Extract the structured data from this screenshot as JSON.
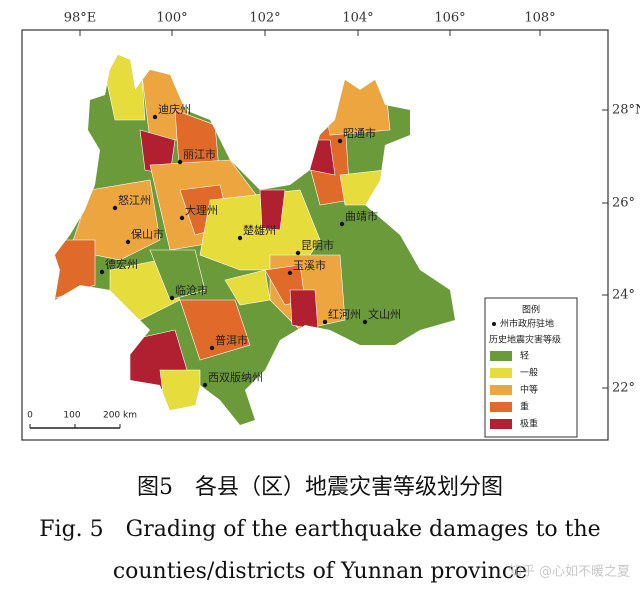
{
  "map": {
    "lon_labels": [
      "98°E",
      "100°",
      "102°",
      "104°",
      "106°",
      "108°"
    ],
    "lat_labels": [
      "28°N",
      "26°",
      "24°",
      "22°"
    ],
    "places": [
      "迪庆州",
      "丽江市",
      "怒江州",
      "大理州",
      "楚雄州",
      "昆明市",
      "曲靖市",
      "昭通市",
      "保山市",
      "德宏州",
      "临沧市",
      "玉溪市",
      "红河州",
      "文山州",
      "普洱市",
      "西双版纳州"
    ],
    "scale_labels": [
      "0",
      "100",
      "200 km"
    ],
    "legend": {
      "title": "图例",
      "seat": "州市政府驻地",
      "subtitle": "历史地震灾害等级",
      "levels": [
        "轻",
        "一般",
        "中等",
        "重",
        "极重"
      ]
    }
  },
  "caption": {
    "cn": "图5　各县（区）地震灾害等级划分图",
    "en_line1": "Fig. 5　Grading of the earthquake damages to the",
    "en_line2": "counties/districts of Yunnan province"
  },
  "watermark": "知乎 @心如不暖之夏"
}
